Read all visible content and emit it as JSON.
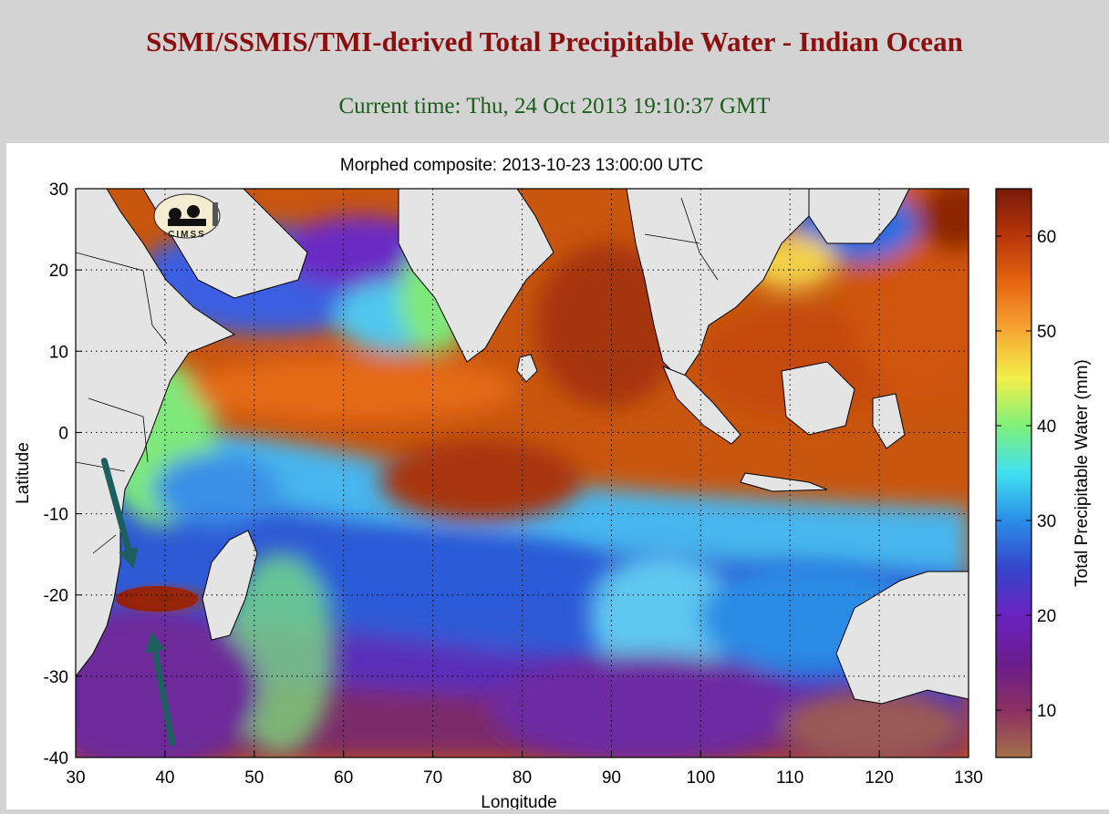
{
  "page": {
    "title": "SSMI/SSMIS/TMI-derived Total Precipitable Water - Indian Ocean",
    "current_time": "Current time: Thu, 24 Oct 2013 19:10:37 GMT"
  },
  "map": {
    "title": "Morphed composite: 2013-10-23 13:00:00 UTC",
    "logo_text": "CIMSS",
    "xlabel": "Longitude",
    "ylabel": "Latitude",
    "lon_range": [
      30,
      130
    ],
    "lat_range": [
      -40,
      30
    ],
    "lon_ticks": [
      "30",
      "40",
      "50",
      "60",
      "70",
      "80",
      "90",
      "100",
      "110",
      "120",
      "130"
    ],
    "lat_ticks": [
      "30",
      "20",
      "10",
      "0",
      "-10",
      "-20",
      "-30",
      "-40"
    ],
    "grid": "dotted",
    "annotations": [
      {
        "name": "arrow-north",
        "from": [
          33.2,
          -3.5
        ],
        "to": [
          36.5,
          -16.8
        ]
      },
      {
        "name": "arrow-south",
        "from": [
          40.8,
          -38.2
        ],
        "to": [
          38.5,
          -24.5
        ]
      }
    ],
    "arrow_color": "#1d5f5e"
  },
  "colorbar": {
    "label": "Total Precipitable Water (mm)",
    "range": [
      5,
      65
    ],
    "ticks": [
      "60",
      "50",
      "40",
      "30",
      "20",
      "10"
    ],
    "colors": [
      "#a6704a",
      "#8c2f62",
      "#6a1d8e",
      "#6a22c0",
      "#3446cc",
      "#2a8ee8",
      "#3fe0f0",
      "#7ff07a",
      "#f2ef48",
      "#f7a734",
      "#e76612",
      "#b8360a",
      "#781a0a"
    ]
  }
}
